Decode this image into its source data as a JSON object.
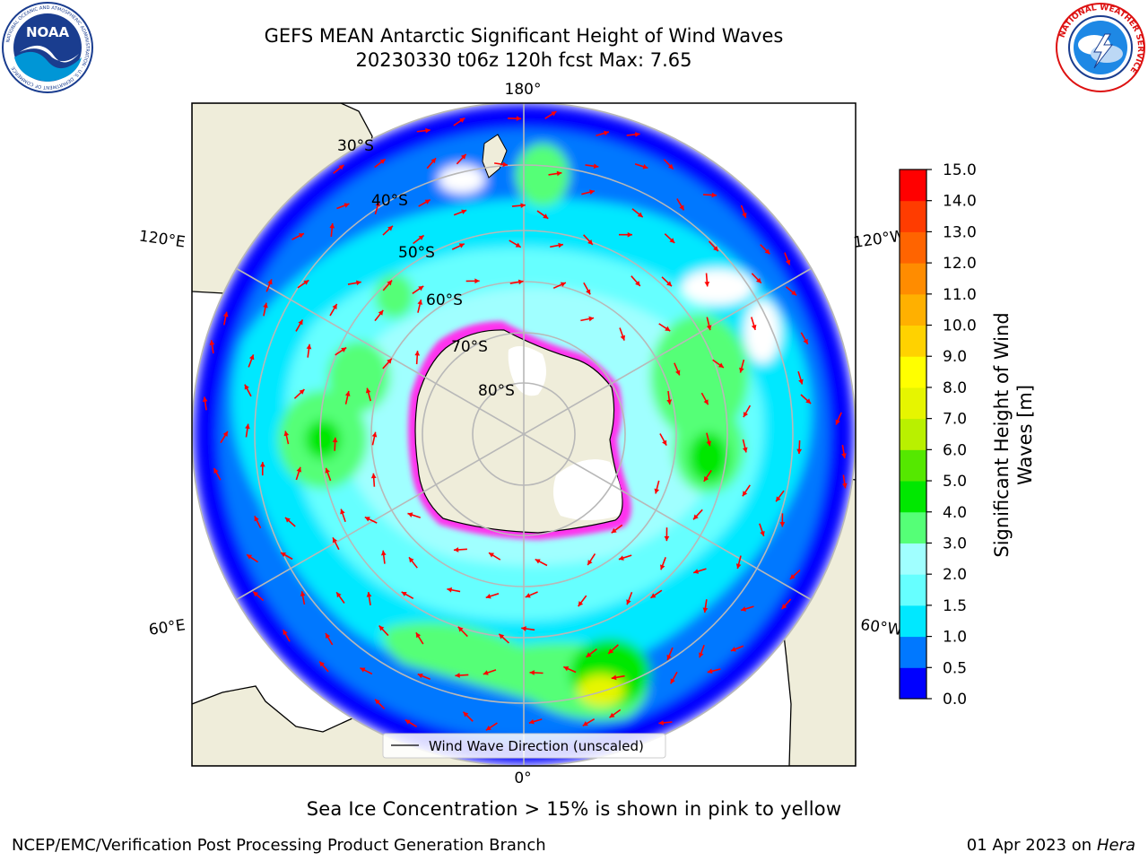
{
  "title": {
    "line1": "GEFS MEAN Antarctic Significant Height of Wind Waves",
    "line2": "20230330 t06z 120h fcst   Max: 7.65"
  },
  "logos": {
    "noaa": {
      "text": "NOAA",
      "ring_text": "NATIONAL OCEANIC AND ATMOSPHERIC ADMINISTRATION · U.S. DEPARTMENT OF COMMERCE"
    },
    "nws": {
      "ring_text": "NATIONAL WEATHER SERVICE"
    }
  },
  "map": {
    "projection": "south-polar-stereographic",
    "lat_labels": [
      "30°S",
      "40°S",
      "50°S",
      "60°S",
      "70°S",
      "80°S"
    ],
    "lon_labels": {
      "top": "180°",
      "bottom": "0°",
      "left_upper": "120°E",
      "left_lower": "60°E",
      "right_upper": "120°W",
      "right_lower": "60°W"
    },
    "legend": "Wind Wave Direction (unscaled)",
    "colors": {
      "land": "#efedda",
      "ice_edge": "#ff33ee",
      "arrow": "#ff0000",
      "grid": "#b8b8b8"
    }
  },
  "colorbar": {
    "label": "Significant Height of Wind Waves [m]",
    "label_line1": "Significant Height of Wind",
    "label_line2": "Waves [m]",
    "ticks": [
      "0.0",
      "0.5",
      "1.0",
      "1.5",
      "2.0",
      "3.0",
      "4.0",
      "5.0",
      "6.0",
      "7.0",
      "8.0",
      "9.0",
      "10.0",
      "11.0",
      "12.0",
      "13.0",
      "14.0",
      "15.0"
    ],
    "colors": [
      "#0000ff",
      "#0078ff",
      "#00e8ff",
      "#66ffff",
      "#a0ffff",
      "#55ff77",
      "#00e800",
      "#55e800",
      "#b9f000",
      "#e6f500",
      "#ffff00",
      "#ffd200",
      "#ffb000",
      "#ff8c00",
      "#ff6400",
      "#ff3c00",
      "#ff0000"
    ]
  },
  "chart_data": {
    "type": "heatmap",
    "title": "GEFS MEAN Antarctic Significant Height of Wind Waves",
    "subtitle": "20230330 t06z 120h fcst   Max: 7.65",
    "variable": "Significant Height of Wind Waves [m]",
    "max_value": 7.65,
    "colorbar_range": [
      0.0,
      15.0
    ],
    "levels": [
      0.0,
      0.5,
      1.0,
      1.5,
      2.0,
      3.0,
      4.0,
      5.0,
      6.0,
      7.0,
      8.0,
      9.0,
      10.0,
      11.0,
      12.0,
      13.0,
      14.0,
      15.0
    ],
    "overlay": "Wind Wave Direction (unscaled)"
  },
  "notes": {
    "ice": "Sea Ice Concentration > 15% is shown in pink to yellow"
  },
  "footer": {
    "left": "NCEP/EMC/Verification Post Processing Product Generation Branch",
    "right_prefix": "01 Apr 2023 on ",
    "right_machine": "Hera"
  }
}
